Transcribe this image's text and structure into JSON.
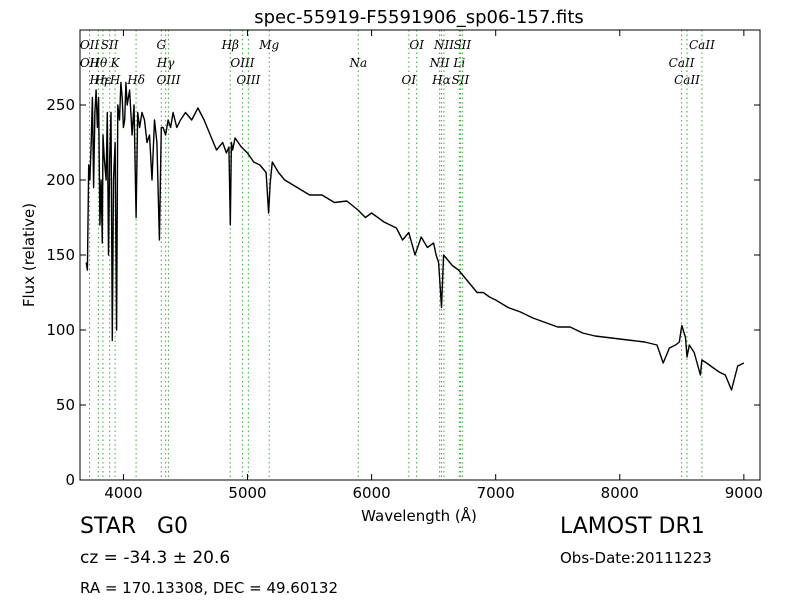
{
  "chart_data": {
    "type": "line",
    "title": "spec-55919-F5591906_sp06-157.fits",
    "xlabel": "Wavelength (Å)",
    "ylabel": "Flux (relative)",
    "xlim": [
      3650,
      9130
    ],
    "ylim": [
      0,
      300
    ],
    "xticks": [
      4000,
      5000,
      6000,
      7000,
      8000,
      9000
    ],
    "yticks": [
      0,
      50,
      100,
      150,
      200,
      250
    ],
    "grid": false,
    "series": [
      {
        "color": "#000000",
        "x": [
          3700,
          3710,
          3720,
          3730,
          3740,
          3750,
          3760,
          3770,
          3780,
          3790,
          3800,
          3810,
          3820,
          3830,
          3835,
          3845,
          3860,
          3870,
          3880,
          3889,
          3900,
          3910,
          3920,
          3933,
          3945,
          3955,
          3968,
          3980,
          3990,
          4000,
          4010,
          4020,
          4030,
          4050,
          4070,
          4085,
          4102,
          4115,
          4130,
          4150,
          4170,
          4190,
          4210,
          4230,
          4250,
          4270,
          4290,
          4305,
          4320,
          4340,
          4360,
          4380,
          4400,
          4430,
          4460,
          4500,
          4550,
          4600,
          4650,
          4700,
          4750,
          4800,
          4830,
          4850,
          4861,
          4870,
          4880,
          4900,
          4950,
          5000,
          5050,
          5100,
          5150,
          5170,
          5183,
          5200,
          5250,
          5300,
          5400,
          5500,
          5600,
          5700,
          5800,
          5890,
          5950,
          6000,
          6100,
          6200,
          6250,
          6300,
          6350,
          6400,
          6450,
          6500,
          6520,
          6540,
          6563,
          6580,
          6600,
          6650,
          6700,
          6750,
          6800,
          6850,
          6900,
          6950,
          7000,
          7100,
          7200,
          7300,
          7400,
          7500,
          7600,
          7700,
          7800,
          7900,
          8000,
          8100,
          8200,
          8300,
          8350,
          8400,
          8450,
          8480,
          8500,
          8530,
          8542,
          8560,
          8600,
          8650,
          8662,
          8700,
          8750,
          8800,
          8850,
          8900,
          8950,
          9000
        ],
        "y": [
          145,
          140,
          210,
          200,
          225,
          255,
          195,
          245,
          260,
          235,
          255,
          170,
          200,
          158,
          230,
          215,
          200,
          245,
          150,
          215,
          245,
          93,
          200,
          225,
          100,
          250,
          240,
          265,
          255,
          235,
          240,
          265,
          250,
          260,
          230,
          250,
          175,
          245,
          235,
          245,
          240,
          225,
          230,
          200,
          240,
          225,
          160,
          235,
          235,
          230,
          240,
          235,
          245,
          235,
          240,
          245,
          240,
          248,
          240,
          230,
          220,
          225,
          218,
          222,
          170,
          225,
          220,
          228,
          222,
          218,
          212,
          210,
          205,
          178,
          198,
          212,
          205,
          200,
          195,
          190,
          190,
          185,
          186,
          180,
          175,
          178,
          172,
          168,
          160,
          165,
          150,
          162,
          155,
          158,
          150,
          145,
          115,
          150,
          148,
          143,
          140,
          135,
          130,
          125,
          125,
          122,
          120,
          115,
          112,
          108,
          105,
          102,
          102,
          98,
          96,
          95,
          94,
          93,
          92,
          90,
          78,
          88,
          90,
          92,
          103,
          95,
          82,
          90,
          85,
          70,
          80,
          78,
          75,
          72,
          70,
          60,
          76,
          78
        ]
      }
    ],
    "line_annotations": [
      {
        "x": 3727,
        "labels": [
          "OII",
          "OII"
        ]
      },
      {
        "x": 3798,
        "labels": [
          "Hθ",
          "Hη"
        ]
      },
      {
        "x": 3835,
        "labels": [
          "Hε"
        ]
      },
      {
        "x": 3889,
        "labels": [
          "SII"
        ]
      },
      {
        "x": 3933,
        "labels": [
          "K",
          "H"
        ]
      },
      {
        "x": 4102,
        "labels": [
          "Hδ"
        ]
      },
      {
        "x": 4305,
        "labels": [
          "G"
        ]
      },
      {
        "x": 4340,
        "labels": [
          "Hγ"
        ]
      },
      {
        "x": 4363,
        "labels": [
          "OIII"
        ]
      },
      {
        "x": 4861,
        "labels": [
          "Hβ"
        ]
      },
      {
        "x": 4959,
        "labels": [
          "OIII"
        ]
      },
      {
        "x": 5007,
        "labels": [
          "OIII"
        ]
      },
      {
        "x": 5175,
        "labels": [
          "Mg"
        ]
      },
      {
        "x": 5893,
        "labels": [
          "Na"
        ]
      },
      {
        "x": 6300,
        "labels": [
          "OI"
        ]
      },
      {
        "x": 6363,
        "labels": [
          "OI"
        ]
      },
      {
        "x": 6548,
        "labels": [
          "NII"
        ]
      },
      {
        "x": 6563,
        "labels": [
          "Hα"
        ]
      },
      {
        "x": 6583,
        "labels": [
          "NII"
        ]
      },
      {
        "x": 6707,
        "labels": [
          "Li"
        ]
      },
      {
        "x": 6716,
        "labels": [
          "SII"
        ]
      },
      {
        "x": 6731,
        "labels": [
          "SII"
        ]
      },
      {
        "x": 8498,
        "labels": [
          "CaII"
        ]
      },
      {
        "x": 8542,
        "labels": [
          "CaII"
        ]
      },
      {
        "x": 8662,
        "labels": [
          "CaII"
        ]
      }
    ],
    "annotation_color": "#4daf4a"
  },
  "info": {
    "object_class": "STAR",
    "subclass": "G0",
    "survey": "LAMOST DR1",
    "redshift": "cz = -34.3 ± 20.6",
    "obs_date": "Obs-Date:20111223",
    "coords": "RA = 170.13308, DEC = 49.60132"
  }
}
